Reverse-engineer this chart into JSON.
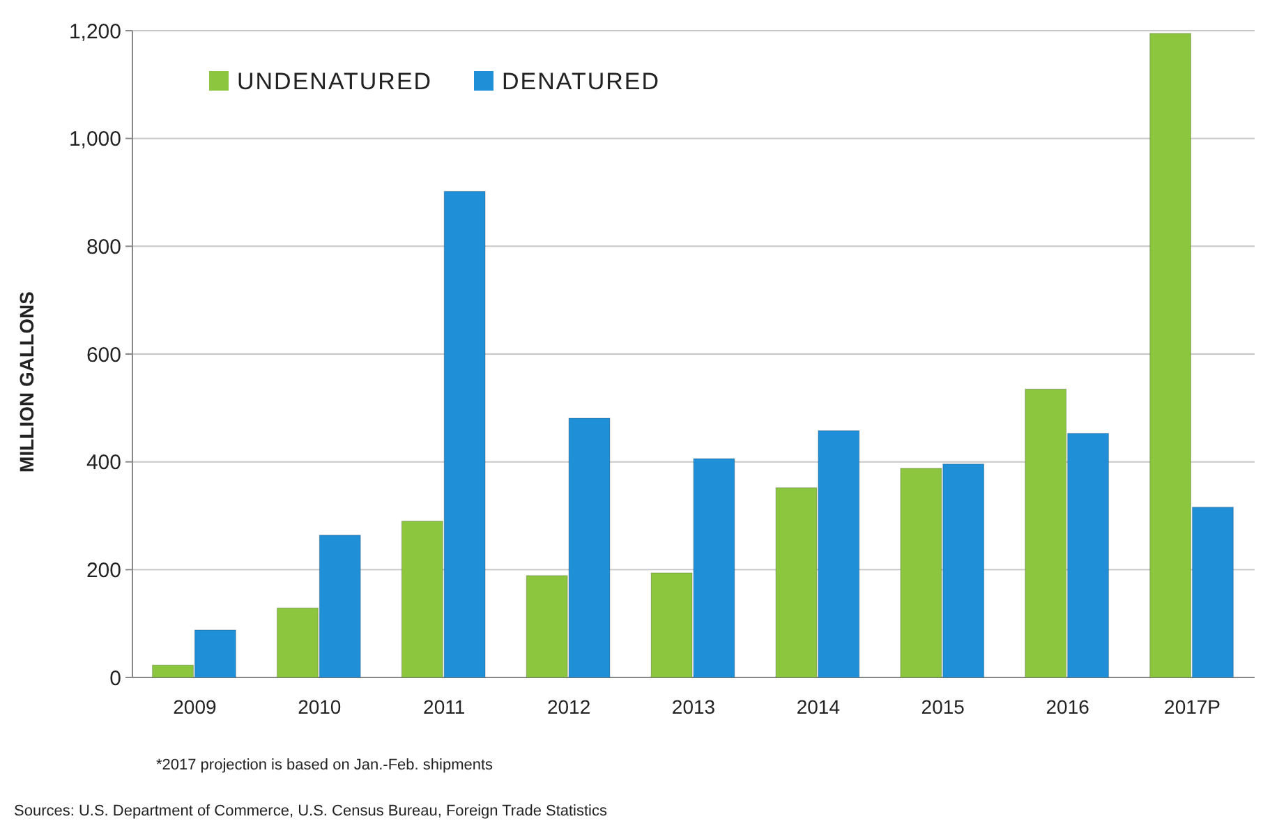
{
  "chart_data": {
    "type": "bar",
    "ylabel": "MILLION GALLONS",
    "categories": [
      "2009",
      "2010",
      "2011",
      "2012",
      "2013",
      "2014",
      "2015",
      "2016",
      "2017P"
    ],
    "series": [
      {
        "name": "UNDENATURED",
        "color": "#8cc63f",
        "values": [
          23,
          129,
          290,
          189,
          194,
          352,
          388,
          535,
          1195
        ]
      },
      {
        "name": "DENATURED",
        "color": "#1f8fd8",
        "values": [
          88,
          264,
          902,
          481,
          406,
          458,
          396,
          453,
          316
        ]
      }
    ],
    "ylim": [
      0,
      1200
    ],
    "yticks": [
      0,
      {
        "value": 200,
        "label": "200"
      },
      {
        "value": 400,
        "label": "400"
      },
      {
        "value": 600,
        "label": "600"
      },
      {
        "value": 800,
        "label": "800"
      },
      {
        "value": 1000,
        "label": "1,000"
      },
      {
        "value": 1200,
        "label": "1,200"
      }
    ],
    "grid": "y",
    "legend": "top left",
    "annotations": [
      "*2017 projection is based on Jan.-Feb. shipments",
      "Sources: U.S. Department of Commerce, U.S. Census Bureau, Foreign Trade Statistics"
    ]
  }
}
